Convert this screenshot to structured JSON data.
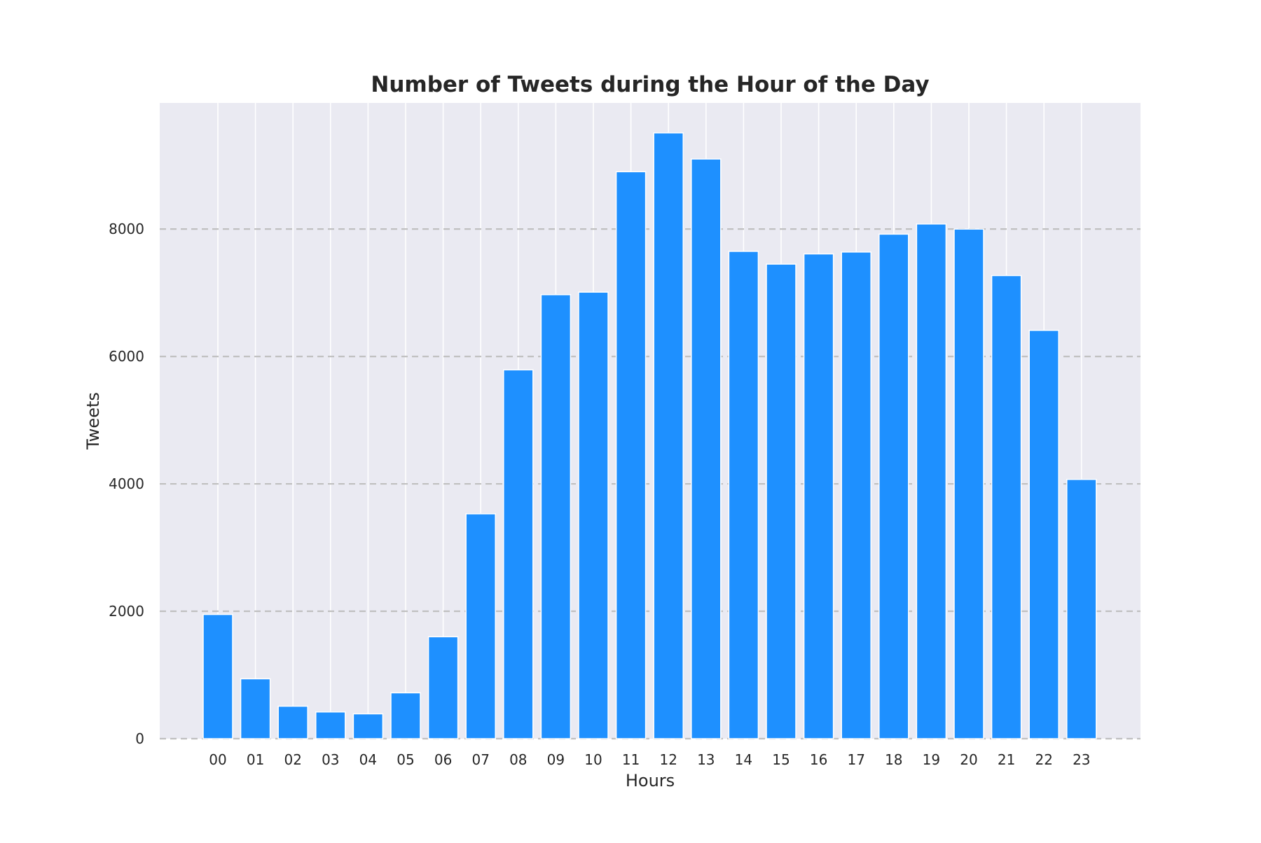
{
  "chart_data": {
    "type": "bar",
    "title": "Number of Tweets during the Hour of the Day",
    "xlabel": "Hours",
    "ylabel": "Tweets",
    "categories": [
      "00",
      "01",
      "02",
      "03",
      "04",
      "05",
      "06",
      "07",
      "08",
      "09",
      "10",
      "11",
      "12",
      "13",
      "14",
      "15",
      "16",
      "17",
      "18",
      "19",
      "20",
      "21",
      "22",
      "23"
    ],
    "values": [
      1950,
      940,
      510,
      420,
      390,
      720,
      1600,
      3530,
      5790,
      6970,
      7010,
      8900,
      9510,
      9100,
      7650,
      7450,
      7610,
      7640,
      7920,
      8080,
      8000,
      7270,
      6410,
      4070
    ],
    "yticks": [
      0,
      2000,
      4000,
      6000,
      8000
    ],
    "ylim": [
      0,
      9980
    ],
    "grid": {
      "x": "solid white",
      "y": "dashed gray"
    },
    "colors": {
      "bar": "#1e90ff",
      "background": "#eaeaf2",
      "ygrid": "#c0c0c0",
      "xgrid": "#ffffff"
    }
  }
}
